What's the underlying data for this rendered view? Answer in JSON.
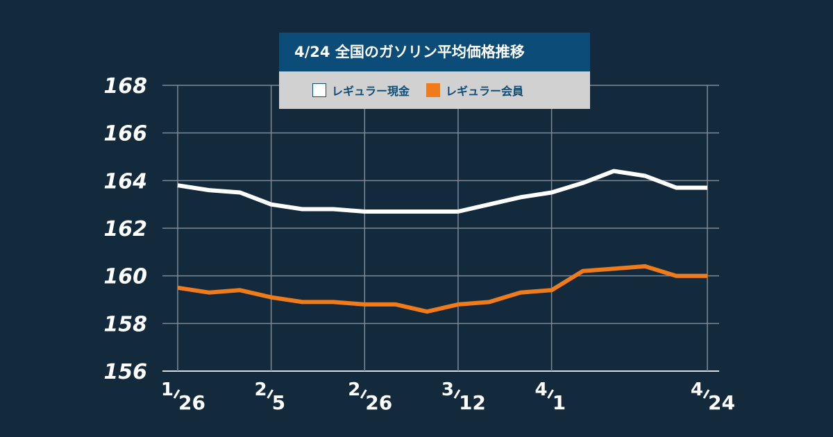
{
  "legend": {
    "title": "4/24  全国のガソリン平均価格推移"
  },
  "chart_data": {
    "type": "line",
    "title": "4/24  全国のガソリン平均価格推移",
    "xlabel": "",
    "ylabel": "",
    "ylim": [
      156,
      168
    ],
    "yticks": [
      "168",
      "166",
      "164",
      "162",
      "160",
      "158",
      "156"
    ],
    "ytick_values": [
      168,
      166,
      164,
      162,
      160,
      158,
      156
    ],
    "xtick_labels": [
      {
        "num": "1",
        "den": "26",
        "index": 0
      },
      {
        "num": "2",
        "den": "5",
        "index": 3
      },
      {
        "num": "2",
        "den": "26",
        "index": 6
      },
      {
        "num": "3",
        "den": "12",
        "index": 9
      },
      {
        "num": "4",
        "den": "1",
        "index": 12
      },
      {
        "num": "4",
        "den": "24",
        "index": 17
      }
    ],
    "x_count": 18,
    "grid": true,
    "legend_position": "top-center",
    "series": [
      {
        "name": "レギュラー現金",
        "color": "#ffffff",
        "values": [
          163.8,
          163.6,
          163.5,
          163.0,
          162.8,
          162.8,
          162.7,
          162.7,
          162.7,
          162.7,
          163.0,
          163.3,
          163.5,
          163.9,
          164.4,
          164.2,
          163.7,
          163.7
        ]
      },
      {
        "name": "レギュラー会員",
        "color": "#ef7b1a",
        "values": [
          159.5,
          159.3,
          159.4,
          159.1,
          158.9,
          158.9,
          158.8,
          158.8,
          158.5,
          158.8,
          158.9,
          159.3,
          159.4,
          160.2,
          160.3,
          160.4,
          160.0,
          160.0
        ]
      }
    ]
  }
}
